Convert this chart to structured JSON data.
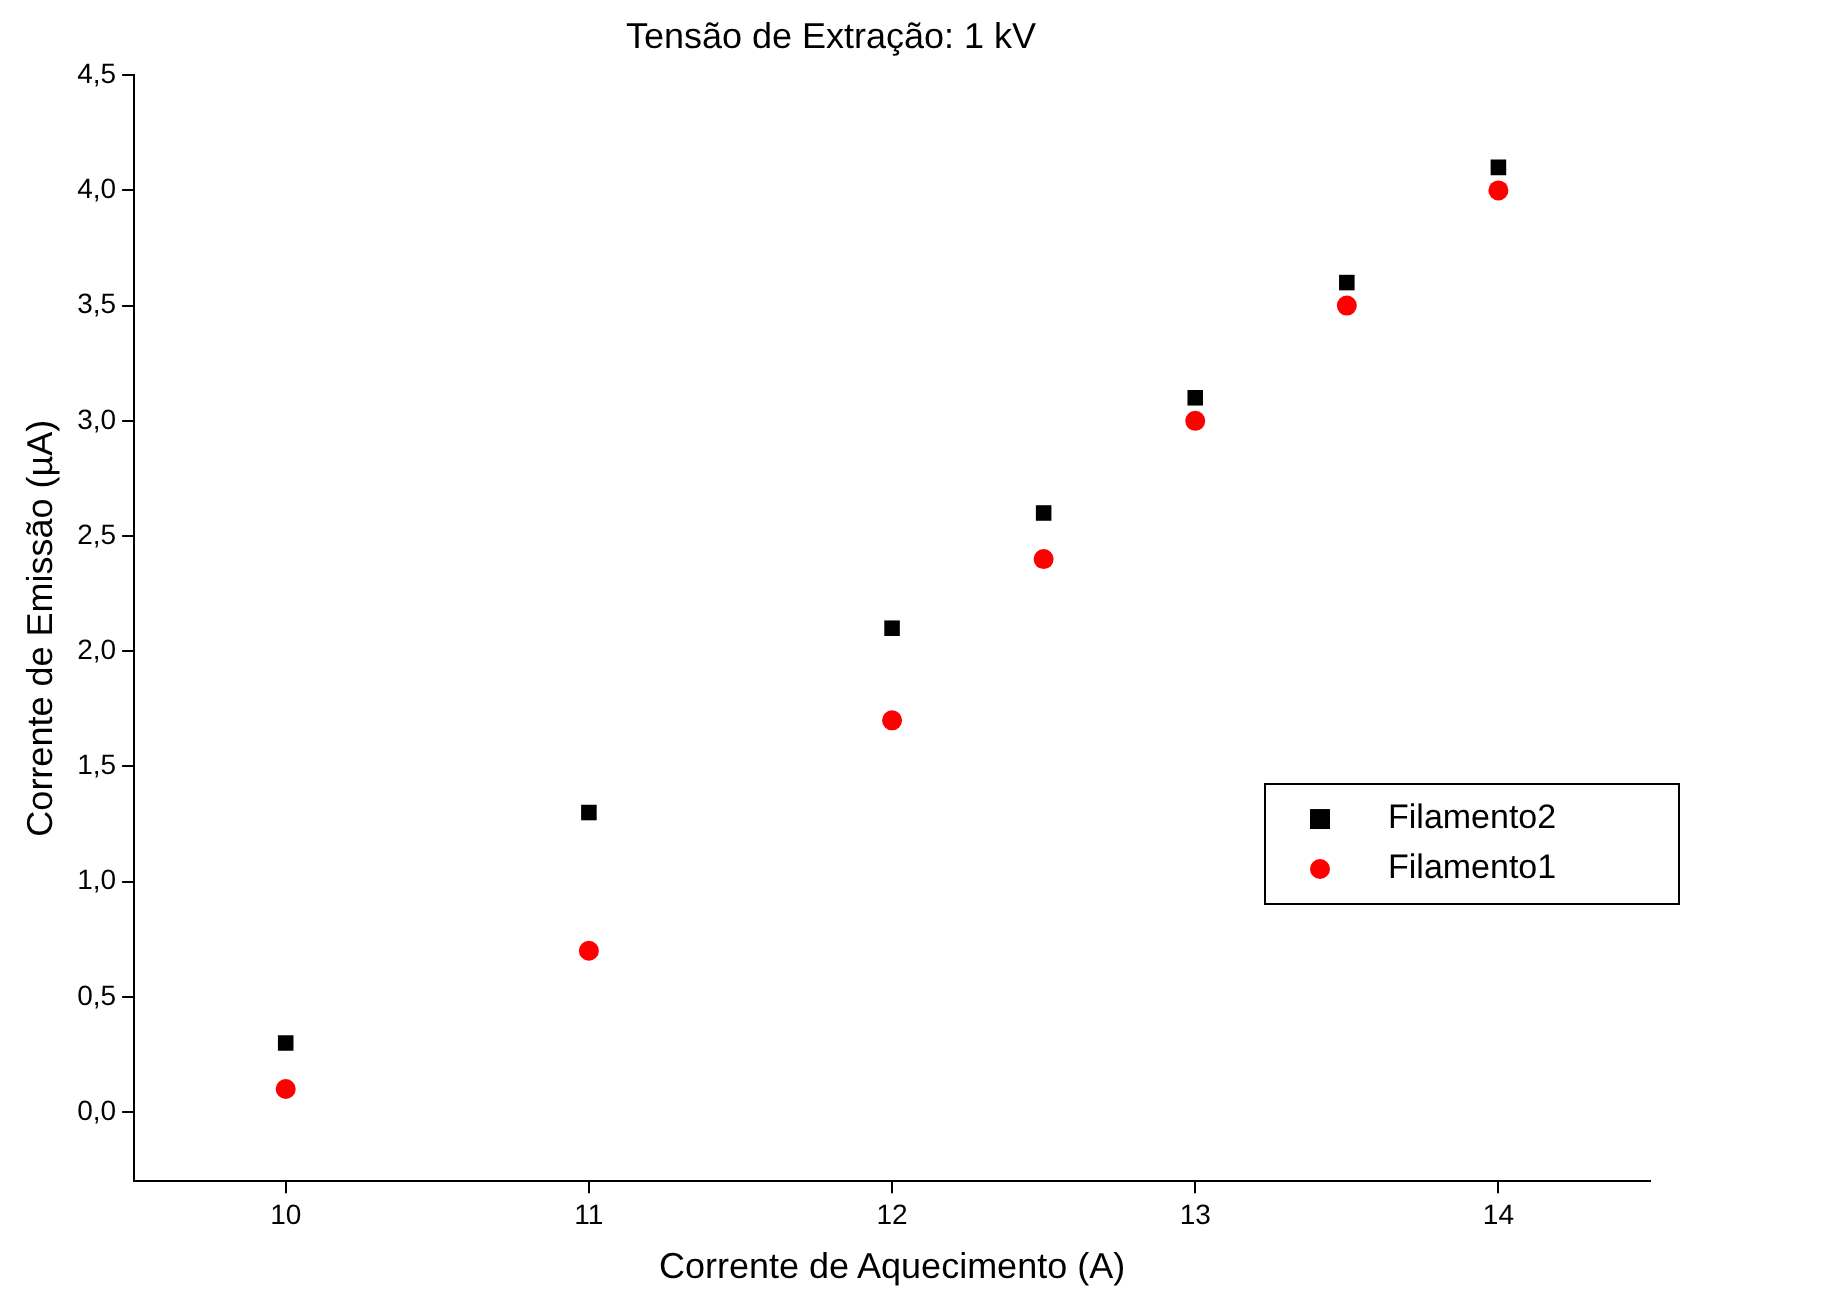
{
  "chart_data": {
    "type": "scatter",
    "title": "Tensão de Extração: 1 kV",
    "xlabel": "Corrente de Aquecimento (A)",
    "ylabel": "Corrente de Emissão (µA)",
    "x": [
      10,
      11,
      12,
      12.5,
      13,
      13.5,
      14
    ],
    "series": [
      {
        "name": "Filamento2",
        "color": "#000000",
        "marker": "square",
        "values": [
          0.3,
          1.3,
          2.1,
          2.6,
          3.1,
          3.6,
          4.1
        ]
      },
      {
        "name": "Filamento1",
        "color": "#ff0000",
        "marker": "circle",
        "values": [
          0.1,
          0.7,
          1.7,
          2.4,
          3.0,
          3.5,
          4.0
        ]
      }
    ],
    "xlim": [
      9.5,
      14.5
    ],
    "xticks": [
      10,
      11,
      12,
      13,
      14
    ],
    "ylim": [
      -0.3,
      4.5
    ],
    "yticks": [
      {
        "value": 0,
        "label": "0,0"
      },
      {
        "value": 0.5,
        "label": "0,5"
      },
      {
        "value": 1,
        "label": "1,0"
      },
      {
        "value": 1.5,
        "label": "1,5"
      },
      {
        "value": 2,
        "label": "2,0"
      },
      {
        "value": 2.5,
        "label": "2,5"
      },
      {
        "value": 3,
        "label": "3,0"
      },
      {
        "value": 3.5,
        "label": "3,5"
      },
      {
        "value": 4,
        "label": "4,0"
      },
      {
        "value": 4.5,
        "label": "4,5"
      }
    ],
    "grid": false,
    "legend": "right"
  }
}
